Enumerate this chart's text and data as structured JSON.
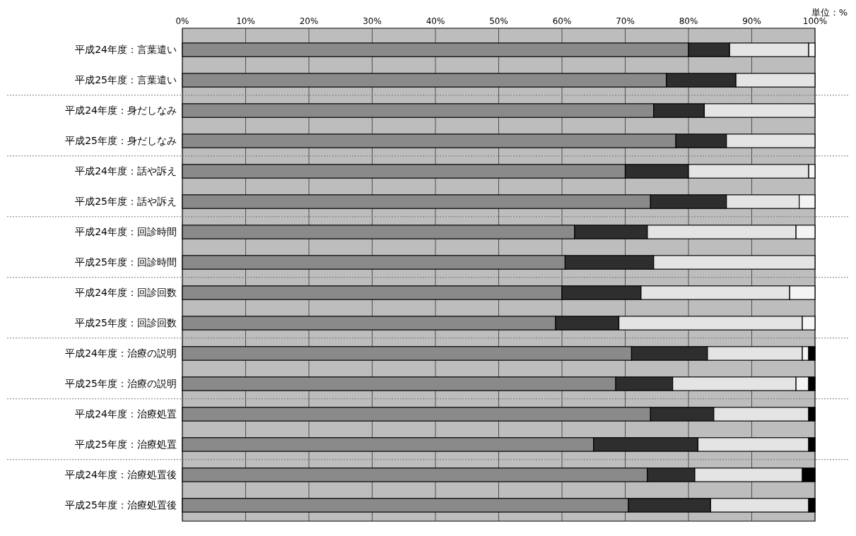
{
  "chart_data": {
    "type": "bar",
    "orientation": "horizontal",
    "stacked": true,
    "categories": [
      "平成24年度：言葉遣い",
      "平成25年度：言葉遣い",
      "平成24年度：身だしなみ",
      "平成25年度：身だしなみ",
      "平成24年度：話や訴え",
      "平成25年度：話や訴え",
      "平成24年度：回診時間",
      "平成25年度：回診時間",
      "平成24年度：回診回数",
      "平成25年度：回診回数",
      "平成24年度：治療の説明",
      "平成25年度：治療の説明",
      "平成24年度：治療処置",
      "平成25年度：治療処置",
      "平成24年度：治療処置後",
      "平成25年度：治療処置後"
    ],
    "series": [
      {
        "color": "#8a8a8a",
        "values": [
          80,
          76.5,
          74.5,
          78,
          70,
          74,
          62,
          60.5,
          60,
          59,
          71,
          68.5,
          74,
          65,
          73.5,
          70.5
        ]
      },
      {
        "color": "#2e2e2e",
        "values": [
          6.5,
          11,
          8,
          8,
          10,
          12,
          11.5,
          14,
          12.5,
          10,
          12,
          9,
          10,
          16.5,
          7.5,
          13
        ]
      },
      {
        "color": "#e4e4e4",
        "values": [
          12.5,
          12.5,
          17.5,
          14,
          19,
          11.5,
          23.5,
          25.5,
          23.5,
          29,
          15,
          19.5,
          15,
          17.5,
          17,
          15.5
        ]
      },
      {
        "color": "#f4f4f4",
        "values": [
          1,
          0,
          0,
          0,
          1,
          2.5,
          3,
          0,
          4,
          2,
          1,
          2,
          0,
          0,
          0,
          0
        ]
      },
      {
        "color": "#000000",
        "values": [
          0,
          0,
          0,
          0,
          0,
          0,
          0,
          0,
          0,
          0,
          1,
          1,
          1,
          1,
          2,
          1
        ]
      }
    ],
    "xlim": [
      0,
      100
    ],
    "xticks": [
      {
        "value": 0,
        "label": "0%"
      },
      {
        "value": 10,
        "label": "10%"
      },
      {
        "value": 20,
        "label": "20%"
      },
      {
        "value": 30,
        "label": "30%"
      },
      {
        "value": 40,
        "label": "40%"
      },
      {
        "value": 50,
        "label": "50%"
      },
      {
        "value": 60,
        "label": "60%"
      },
      {
        "value": 70,
        "label": "70%"
      },
      {
        "value": 80,
        "label": "80%"
      },
      {
        "value": 90,
        "label": "90%"
      },
      {
        "value": 100,
        "label": "100%"
      }
    ],
    "grid": "x",
    "annotations": [
      "単位：%"
    ]
  }
}
